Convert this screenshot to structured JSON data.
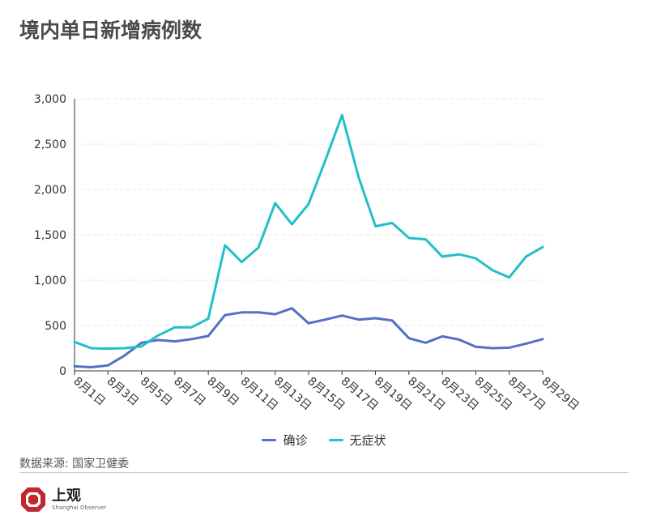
{
  "title": "境内单日新增病例数",
  "source": "数据来源: 国家卫健委",
  "logo": {
    "cn": "上观",
    "en": "Shanghai Observer"
  },
  "colors": {
    "confirmed": "#5470c6",
    "asymptomatic": "#22bfc9",
    "grid": "#e3e3e3",
    "axis": "#333333",
    "logo": "#c1272d"
  },
  "chart_data": {
    "type": "line",
    "title": "境内单日新增病例数",
    "xlabel": "",
    "ylabel": "",
    "ylim": [
      0,
      3000
    ],
    "yticks": [
      0,
      500,
      1000,
      1500,
      2000,
      2500,
      3000
    ],
    "ytick_labels": [
      "0",
      "500",
      "1,000",
      "1,500",
      "2,000",
      "2,500",
      "3,000"
    ],
    "grid": true,
    "legend": "bottom",
    "x": [
      "8月1日",
      "8月2日",
      "8月3日",
      "8月4日",
      "8月5日",
      "8月6日",
      "8月7日",
      "8月8日",
      "8月9日",
      "8月10日",
      "8月11日",
      "8月12日",
      "8月13日",
      "8月14日",
      "8月15日",
      "8月16日",
      "8月17日",
      "8月18日",
      "8月19日",
      "8月20日",
      "8月21日",
      "8月22日",
      "8月23日",
      "8月24日",
      "8月25日",
      "8月26日",
      "8月27日",
      "8月28日",
      "8月29日"
    ],
    "xtick_labels": [
      "8月1日",
      "8月3日",
      "8月5日",
      "8月7日",
      "8月9日",
      "8月11日",
      "8月13日",
      "8月15日",
      "8月17日",
      "8月19日",
      "8月21日",
      "8月23日",
      "8月25日",
      "8月27日",
      "8月29日"
    ],
    "series": [
      {
        "name": "确诊",
        "color": "#5470c6",
        "values": [
          50,
          40,
          60,
          170,
          310,
          340,
          325,
          350,
          385,
          615,
          645,
          645,
          625,
          690,
          525,
          565,
          610,
          565,
          580,
          555,
          360,
          310,
          380,
          345,
          265,
          250,
          255,
          300,
          350
        ]
      },
      {
        "name": "无症状",
        "color": "#22bfc9",
        "values": [
          320,
          250,
          245,
          250,
          270,
          390,
          480,
          480,
          575,
          1385,
          1200,
          1360,
          1850,
          1615,
          1840,
          2320,
          2820,
          2130,
          1595,
          1630,
          1465,
          1450,
          1260,
          1285,
          1240,
          1110,
          1030,
          1260,
          1365
        ]
      }
    ]
  }
}
